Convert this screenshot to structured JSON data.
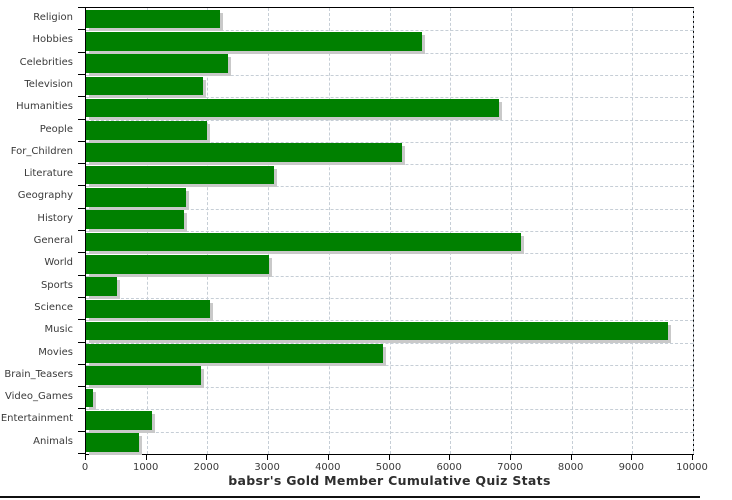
{
  "chart_data": {
    "type": "bar",
    "orientation": "horizontal",
    "title": "babsr's Gold Member Cumulative Quiz Stats",
    "categories": [
      "Religion",
      "Hobbies",
      "Celebrities",
      "Television",
      "Humanities",
      "People",
      "For_Children",
      "Literature",
      "Geography",
      "History",
      "General",
      "World",
      "Sports",
      "Science",
      "Music",
      "Movies",
      "Brain_Teasers",
      "Video_Games",
      "Entertainment",
      "Animals"
    ],
    "values": [
      2210,
      5540,
      2340,
      1920,
      6810,
      2000,
      5200,
      3090,
      1650,
      1620,
      7170,
      3020,
      510,
      2050,
      9590,
      4900,
      1900,
      120,
      1090,
      870
    ],
    "xlim": [
      0,
      10000
    ],
    "x_ticks": [
      0,
      1000,
      2000,
      3000,
      4000,
      5000,
      6000,
      7000,
      8000,
      9000,
      10000
    ],
    "x_tick_labels": [
      "0",
      "1000",
      "2000",
      "3000",
      "4000",
      "5000",
      "6000",
      "7000",
      "8000",
      "9000",
      "10000"
    ],
    "grid": true,
    "legend": null,
    "colors": {
      "bar": "#008000",
      "bar_shadow": "#c9c9c9",
      "grid": "#c6ced6",
      "axis": "#000000",
      "text": "#3a3a3a"
    }
  }
}
